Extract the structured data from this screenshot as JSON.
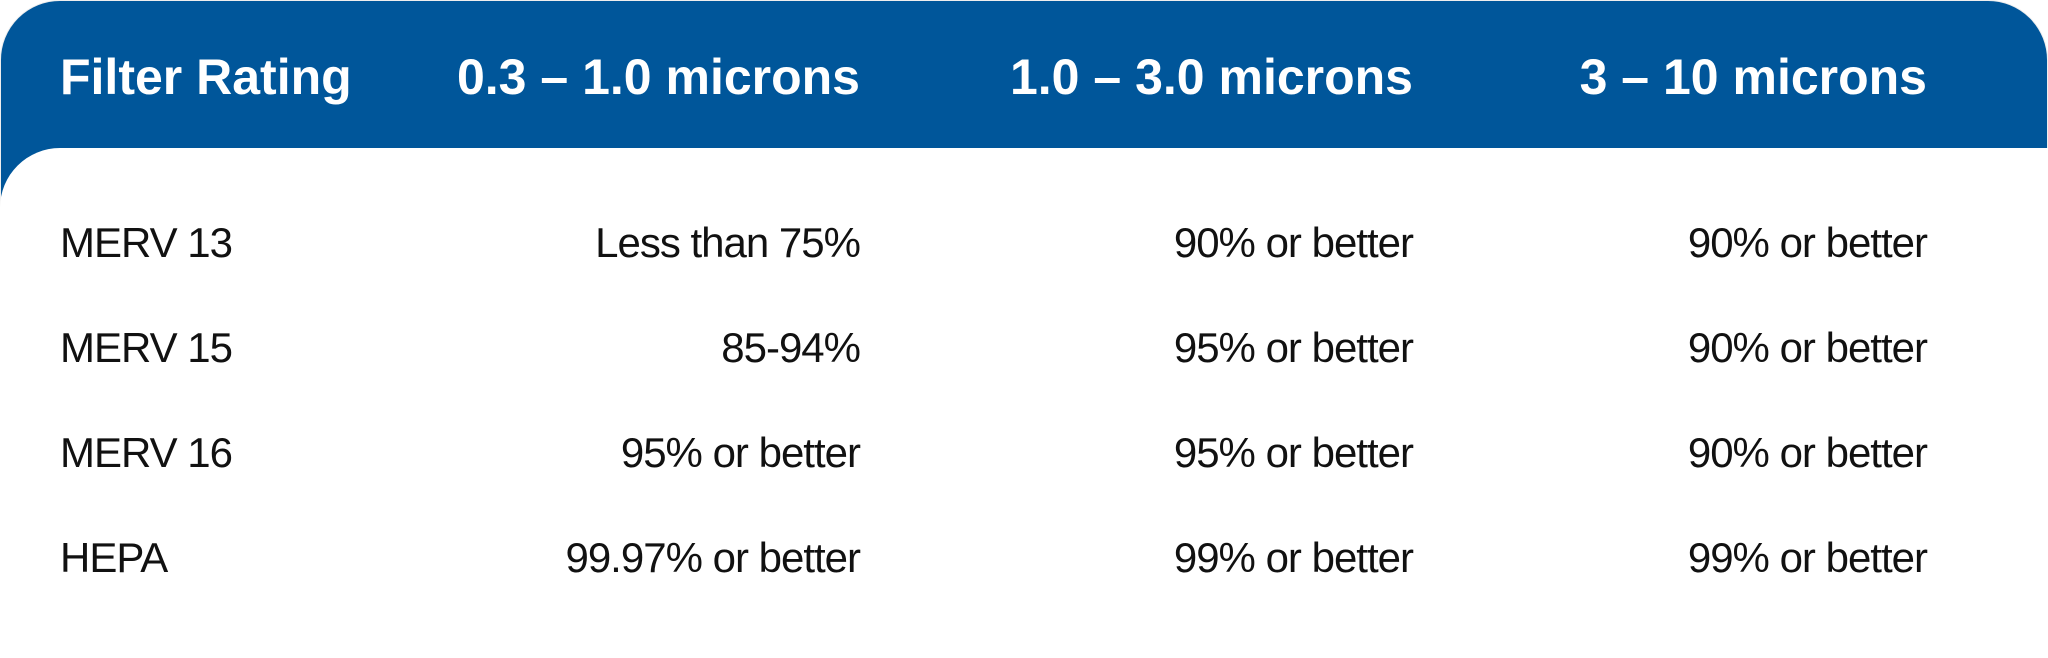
{
  "table": {
    "columns": [
      "Filter Rating",
      "0.3 – 1.0 microns",
      "1.0 – 3.0 microns",
      "3 – 10 microns"
    ],
    "rows": [
      [
        "MERV 13",
        "Less than 75%",
        "90% or better",
        "90% or better"
      ],
      [
        "MERV 15",
        "85-94%",
        "95% or better",
        "90% or better"
      ],
      [
        "MERV 16",
        "95% or better",
        "95% or better",
        "90% or better"
      ],
      [
        "HEPA",
        "99.97% or better",
        "99% or better",
        "99% or better"
      ]
    ]
  }
}
